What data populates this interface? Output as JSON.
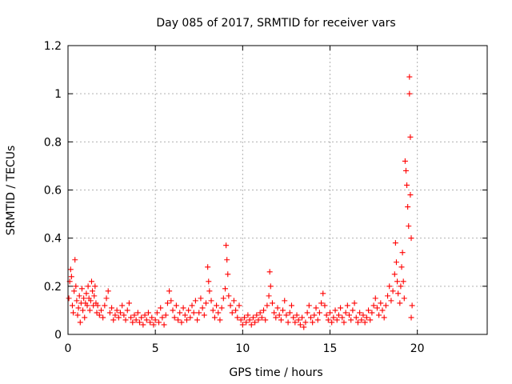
{
  "chart_data": {
    "type": "scatter",
    "title": "Day 085 of 2017, SRMTID for receiver vars",
    "xlabel": "GPS time / hours",
    "ylabel": "SRMTID / TECUs",
    "xlim": [
      0,
      24
    ],
    "ylim": [
      0,
      1.2
    ],
    "xticks": [
      0,
      5,
      10,
      15,
      20
    ],
    "xtick_labels": [
      "0",
      "5",
      "10",
      "15",
      "20"
    ],
    "yticks": [
      0,
      0.2,
      0.4,
      0.6,
      0.8,
      1.0,
      1.2
    ],
    "ytick_labels": [
      "0",
      "0.2",
      "0.4",
      "0.6",
      "0.8",
      "1",
      "1.2"
    ],
    "grid": true,
    "marker": "plus",
    "series": [
      {
        "name": "SRMTID",
        "color": "#ff0000",
        "points": [
          [
            0.05,
            0.15
          ],
          [
            0.1,
            0.22
          ],
          [
            0.15,
            0.27
          ],
          [
            0.2,
            0.24
          ],
          [
            0.25,
            0.12
          ],
          [
            0.3,
            0.09
          ],
          [
            0.35,
            0.18
          ],
          [
            0.4,
            0.31
          ],
          [
            0.45,
            0.2
          ],
          [
            0.5,
            0.14
          ],
          [
            0.55,
            0.08
          ],
          [
            0.6,
            0.11
          ],
          [
            0.65,
            0.16
          ],
          [
            0.7,
            0.05
          ],
          [
            0.75,
            0.13
          ],
          [
            0.8,
            0.19
          ],
          [
            0.85,
            0.1
          ],
          [
            0.9,
            0.15
          ],
          [
            0.95,
            0.07
          ],
          [
            1.0,
            0.13
          ],
          [
            1.05,
            0.17
          ],
          [
            1.1,
            0.12
          ],
          [
            1.15,
            0.2
          ],
          [
            1.2,
            0.15
          ],
          [
            1.25,
            0.1
          ],
          [
            1.3,
            0.14
          ],
          [
            1.35,
            0.22
          ],
          [
            1.4,
            0.18
          ],
          [
            1.45,
            0.12
          ],
          [
            1.5,
            0.16
          ],
          [
            1.55,
            0.2
          ],
          [
            1.6,
            0.13
          ],
          [
            1.65,
            0.09
          ],
          [
            1.7,
            0.12
          ],
          [
            1.8,
            0.08
          ],
          [
            1.9,
            0.1
          ],
          [
            2.0,
            0.07
          ],
          [
            2.1,
            0.12
          ],
          [
            2.2,
            0.15
          ],
          [
            2.3,
            0.18
          ],
          [
            2.4,
            0.09
          ],
          [
            2.5,
            0.11
          ],
          [
            2.6,
            0.06
          ],
          [
            2.7,
            0.08
          ],
          [
            2.8,
            0.1
          ],
          [
            2.9,
            0.07
          ],
          [
            3.0,
            0.09
          ],
          [
            3.1,
            0.12
          ],
          [
            3.2,
            0.08
          ],
          [
            3.3,
            0.06
          ],
          [
            3.4,
            0.1
          ],
          [
            3.5,
            0.13
          ],
          [
            3.6,
            0.07
          ],
          [
            3.7,
            0.05
          ],
          [
            3.8,
            0.08
          ],
          [
            3.9,
            0.06
          ],
          [
            4.0,
            0.09
          ],
          [
            4.1,
            0.05
          ],
          [
            4.2,
            0.07
          ],
          [
            4.3,
            0.04
          ],
          [
            4.4,
            0.08
          ],
          [
            4.5,
            0.06
          ],
          [
            4.6,
            0.09
          ],
          [
            4.7,
            0.05
          ],
          [
            4.8,
            0.07
          ],
          [
            4.9,
            0.04
          ],
          [
            5.0,
            0.06
          ],
          [
            5.1,
            0.09
          ],
          [
            5.2,
            0.05
          ],
          [
            5.3,
            0.11
          ],
          [
            5.4,
            0.07
          ],
          [
            5.5,
            0.04
          ],
          [
            5.6,
            0.08
          ],
          [
            5.7,
            0.13
          ],
          [
            5.8,
            0.18
          ],
          [
            5.9,
            0.14
          ],
          [
            6.0,
            0.1
          ],
          [
            6.1,
            0.07
          ],
          [
            6.2,
            0.12
          ],
          [
            6.3,
            0.06
          ],
          [
            6.4,
            0.09
          ],
          [
            6.5,
            0.05
          ],
          [
            6.6,
            0.11
          ],
          [
            6.7,
            0.08
          ],
          [
            6.8,
            0.06
          ],
          [
            6.9,
            0.1
          ],
          [
            7.0,
            0.07
          ],
          [
            7.1,
            0.12
          ],
          [
            7.2,
            0.09
          ],
          [
            7.3,
            0.14
          ],
          [
            7.4,
            0.06
          ],
          [
            7.5,
            0.09
          ],
          [
            7.6,
            0.15
          ],
          [
            7.7,
            0.11
          ],
          [
            7.8,
            0.08
          ],
          [
            7.9,
            0.13
          ],
          [
            8.0,
            0.28
          ],
          [
            8.05,
            0.22
          ],
          [
            8.1,
            0.18
          ],
          [
            8.2,
            0.14
          ],
          [
            8.3,
            0.1
          ],
          [
            8.4,
            0.07
          ],
          [
            8.5,
            0.12
          ],
          [
            8.6,
            0.09
          ],
          [
            8.7,
            0.06
          ],
          [
            8.8,
            0.11
          ],
          [
            8.9,
            0.15
          ],
          [
            9.0,
            0.19
          ],
          [
            9.05,
            0.37
          ],
          [
            9.1,
            0.31
          ],
          [
            9.15,
            0.25
          ],
          [
            9.2,
            0.16
          ],
          [
            9.3,
            0.12
          ],
          [
            9.4,
            0.09
          ],
          [
            9.5,
            0.14
          ],
          [
            9.6,
            0.1
          ],
          [
            9.7,
            0.07
          ],
          [
            9.8,
            0.12
          ],
          [
            9.9,
            0.06
          ],
          [
            10.0,
            0.04
          ],
          [
            10.1,
            0.07
          ],
          [
            10.2,
            0.05
          ],
          [
            10.3,
            0.08
          ],
          [
            10.4,
            0.06
          ],
          [
            10.5,
            0.04
          ],
          [
            10.6,
            0.07
          ],
          [
            10.7,
            0.05
          ],
          [
            10.8,
            0.08
          ],
          [
            10.9,
            0.06
          ],
          [
            11.0,
            0.09
          ],
          [
            11.1,
            0.07
          ],
          [
            11.2,
            0.1
          ],
          [
            11.3,
            0.06
          ],
          [
            11.4,
            0.12
          ],
          [
            11.5,
            0.16
          ],
          [
            11.55,
            0.26
          ],
          [
            11.6,
            0.2
          ],
          [
            11.7,
            0.13
          ],
          [
            11.8,
            0.09
          ],
          [
            11.9,
            0.07
          ],
          [
            12.0,
            0.11
          ],
          [
            12.1,
            0.08
          ],
          [
            12.2,
            0.06
          ],
          [
            12.3,
            0.1
          ],
          [
            12.4,
            0.14
          ],
          [
            12.5,
            0.08
          ],
          [
            12.6,
            0.05
          ],
          [
            12.7,
            0.09
          ],
          [
            12.8,
            0.12
          ],
          [
            12.9,
            0.07
          ],
          [
            13.0,
            0.05
          ],
          [
            13.1,
            0.08
          ],
          [
            13.2,
            0.06
          ],
          [
            13.3,
            0.04
          ],
          [
            13.4,
            0.07
          ],
          [
            13.5,
            0.03
          ],
          [
            13.6,
            0.05
          ],
          [
            13.7,
            0.09
          ],
          [
            13.8,
            0.12
          ],
          [
            13.9,
            0.07
          ],
          [
            14.0,
            0.05
          ],
          [
            14.1,
            0.08
          ],
          [
            14.2,
            0.11
          ],
          [
            14.3,
            0.06
          ],
          [
            14.4,
            0.09
          ],
          [
            14.5,
            0.13
          ],
          [
            14.6,
            0.17
          ],
          [
            14.7,
            0.12
          ],
          [
            14.8,
            0.08
          ],
          [
            14.9,
            0.06
          ],
          [
            15.0,
            0.09
          ],
          [
            15.1,
            0.05
          ],
          [
            15.2,
            0.07
          ],
          [
            15.3,
            0.1
          ],
          [
            15.4,
            0.06
          ],
          [
            15.5,
            0.08
          ],
          [
            15.6,
            0.11
          ],
          [
            15.7,
            0.07
          ],
          [
            15.8,
            0.05
          ],
          [
            15.9,
            0.09
          ],
          [
            16.0,
            0.12
          ],
          [
            16.1,
            0.08
          ],
          [
            16.2,
            0.06
          ],
          [
            16.3,
            0.1
          ],
          [
            16.4,
            0.13
          ],
          [
            16.5,
            0.07
          ],
          [
            16.6,
            0.05
          ],
          [
            16.7,
            0.09
          ],
          [
            16.8,
            0.06
          ],
          [
            16.9,
            0.08
          ],
          [
            17.0,
            0.05
          ],
          [
            17.1,
            0.07
          ],
          [
            17.2,
            0.1
          ],
          [
            17.3,
            0.06
          ],
          [
            17.4,
            0.09
          ],
          [
            17.5,
            0.12
          ],
          [
            17.6,
            0.15
          ],
          [
            17.7,
            0.11
          ],
          [
            17.8,
            0.08
          ],
          [
            17.9,
            0.13
          ],
          [
            18.0,
            0.1
          ],
          [
            18.1,
            0.07
          ],
          [
            18.2,
            0.12
          ],
          [
            18.3,
            0.16
          ],
          [
            18.4,
            0.2
          ],
          [
            18.5,
            0.14
          ],
          [
            18.6,
            0.18
          ],
          [
            18.7,
            0.25
          ],
          [
            18.75,
            0.38
          ],
          [
            18.8,
            0.3
          ],
          [
            18.85,
            0.22
          ],
          [
            18.9,
            0.17
          ],
          [
            19.0,
            0.13
          ],
          [
            19.05,
            0.2
          ],
          [
            19.1,
            0.28
          ],
          [
            19.15,
            0.34
          ],
          [
            19.2,
            0.22
          ],
          [
            19.25,
            0.15
          ],
          [
            19.3,
            0.72
          ],
          [
            19.35,
            0.68
          ],
          [
            19.4,
            0.62
          ],
          [
            19.45,
            0.53
          ],
          [
            19.5,
            0.45
          ],
          [
            19.55,
            1.07
          ],
          [
            19.55,
            1.0
          ],
          [
            19.6,
            0.82
          ],
          [
            19.6,
            0.58
          ],
          [
            19.65,
            0.4
          ],
          [
            19.65,
            0.07
          ],
          [
            19.7,
            0.12
          ]
        ]
      }
    ]
  }
}
